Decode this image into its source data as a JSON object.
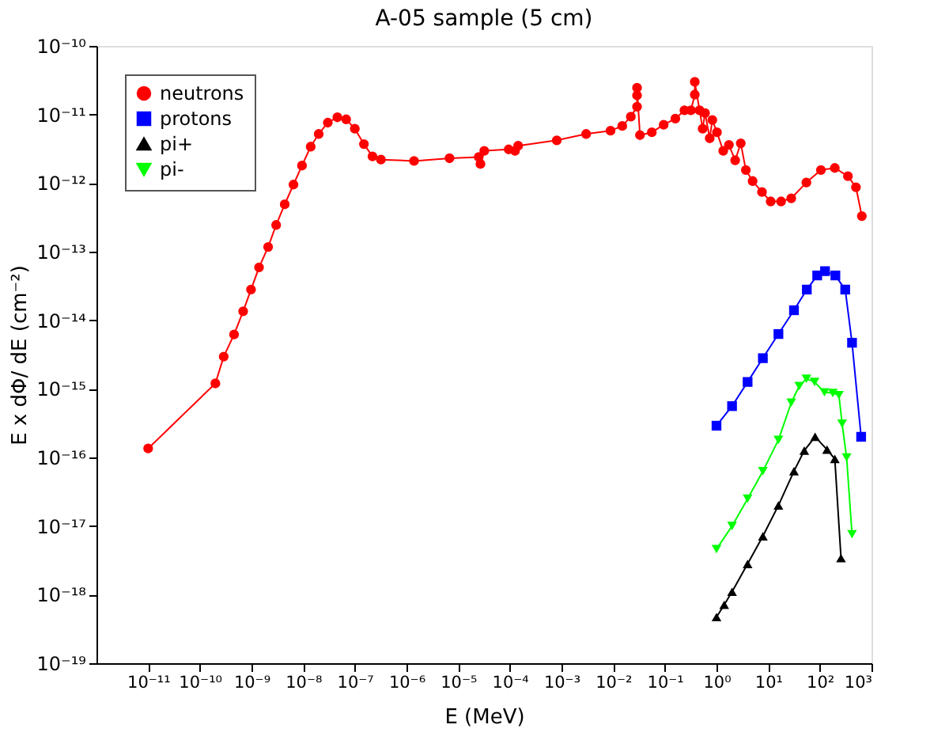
{
  "chart_data": {
    "type": "line",
    "title": "A-05 sample (5 cm)",
    "xlabel": "E (MeV)",
    "ylabel": "E x dΦ/ dE (cm⁻²)",
    "log": "xy",
    "grid": false,
    "legend": "top left",
    "xlim": [
      1e-12,
      1000.0
    ],
    "xticks": [
      {
        "value": 1e-11,
        "label": "10⁻¹¹"
      },
      {
        "value": 1e-10,
        "label": "10⁻¹⁰"
      },
      {
        "value": 1e-09,
        "label": "10⁻⁹"
      },
      {
        "value": 1e-08,
        "label": "10⁻⁸"
      },
      {
        "value": 1e-07,
        "label": "10⁻⁷"
      },
      {
        "value": 1e-06,
        "label": "10⁻⁶"
      },
      {
        "value": 1e-05,
        "label": "10⁻⁵"
      },
      {
        "value": 0.0001,
        "label": "10⁻⁴"
      },
      {
        "value": 0.001,
        "label": "10⁻³"
      },
      {
        "value": 0.01,
        "label": "10⁻²"
      },
      {
        "value": 0.1,
        "label": "10⁻¹"
      },
      {
        "value": 1,
        "label": "10⁰"
      },
      {
        "value": 10,
        "label": "10¹"
      },
      {
        "value": 100,
        "label": "10²"
      },
      {
        "value": 1000,
        "label": "10³"
      }
    ],
    "ylim": [
      1e-19,
      1e-10
    ],
    "yticks": [
      {
        "value": 1e-19,
        "label": "10⁻¹⁹"
      },
      {
        "value": 1e-18,
        "label": "10⁻¹⁸"
      },
      {
        "value": 1e-17,
        "label": "10⁻¹⁷"
      },
      {
        "value": 1e-16,
        "label": "10⁻¹⁶"
      },
      {
        "value": 1e-15,
        "label": "10⁻¹⁵"
      },
      {
        "value": 1e-14,
        "label": "10⁻¹⁴"
      },
      {
        "value": 1e-13,
        "label": "10⁻¹³"
      },
      {
        "value": 1e-12,
        "label": "10⁻¹²"
      },
      {
        "value": 1e-11,
        "label": "10⁻¹¹"
      },
      {
        "value": 1e-10,
        "label": "10⁻¹⁰"
      }
    ],
    "series": [
      {
        "name": "neutrons",
        "color": "#ff0000",
        "marker": "circle",
        "line_style": "solid",
        "x": [
          1e-11,
          2e-10,
          2.9e-10,
          4.6e-10,
          6.9e-10,
          9.8e-10,
          1.4e-09,
          2.1e-09,
          3e-09,
          4.4e-09,
          6.5e-09,
          9.5e-09,
          1.4e-08,
          2e-08,
          3e-08,
          4.6e-08,
          6.8e-08,
          1e-07,
          1.5e-07,
          2.2e-07,
          3.2e-07,
          1.4e-06,
          6.8e-06,
          2.5e-05,
          2.7e-05,
          3.2e-05,
          9.5e-05,
          0.000126,
          0.000145,
          0.00081,
          0.003,
          0.0089,
          0.015,
          0.022,
          0.029,
          0.029,
          0.029,
          0.033,
          0.056,
          0.095,
          0.16,
          0.24,
          0.32,
          0.38,
          0.38,
          0.47,
          0.54,
          0.6,
          0.74,
          0.83,
          1.02,
          1.35,
          1.74,
          2.3,
          2.95,
          3.7,
          5,
          7.6,
          11.2,
          17.8,
          28,
          55,
          105,
          195,
          350,
          500,
          650
        ],
        "values": [
          1.35e-16,
          1.2e-15,
          2.95e-15,
          6.2e-15,
          1.35e-14,
          2.8e-14,
          5.9e-14,
          1.17e-13,
          2.45e-13,
          4.9e-13,
          9.5e-13,
          1.8e-12,
          3.4e-12,
          5.2e-12,
          7.6e-12,
          9.1e-12,
          8.5e-12,
          6.2e-12,
          3.7e-12,
          2.45e-12,
          2.2e-12,
          2.1e-12,
          2.3e-12,
          2.4e-12,
          1.9e-12,
          2.95e-12,
          3.1e-12,
          2.95e-12,
          3.5e-12,
          4.2e-12,
          5.2e-12,
          5.8e-12,
          6.8e-12,
          9.3e-12,
          1.3e-11,
          1.9e-11,
          2.45e-11,
          5e-12,
          5.5e-12,
          7.1e-12,
          8.7e-12,
          1.15e-11,
          1.15e-11,
          1.95e-11,
          3e-11,
          1.15e-11,
          6.2e-12,
          1.05e-11,
          4.5e-12,
          8.3e-12,
          5.5e-12,
          2.95e-12,
          3.6e-12,
          2.15e-12,
          3.8e-12,
          1.55e-12,
          1.07e-12,
          7.4e-13,
          5.4e-13,
          5.4e-13,
          6e-13,
          1.02e-12,
          1.55e-12,
          1.66e-12,
          1.26e-12,
          8.7e-13,
          3.3e-13
        ]
      },
      {
        "name": "protons",
        "color": "#0000ff",
        "marker": "square",
        "line_style": "solid",
        "x": [
          1,
          2,
          4,
          7.9,
          15.8,
          31.6,
          56,
          89,
          126,
          200,
          310,
          420,
          630
        ],
        "values": [
          2.9e-16,
          5.6e-16,
          1.26e-15,
          2.8e-15,
          6.3e-15,
          1.4e-14,
          2.8e-14,
          4.5e-14,
          5.2e-14,
          4.5e-14,
          2.8e-14,
          4.7e-15,
          2e-16
        ]
      },
      {
        "name": "pi+",
        "color": "#000000",
        "marker": "triangle",
        "line_style": "solid",
        "x": [
          1,
          1.41,
          2,
          4,
          7.9,
          15.8,
          31.6,
          50,
          81,
          138,
          195,
          257
        ],
        "values": [
          4.7e-19,
          7.1e-19,
          1.1e-18,
          2.8e-18,
          7.1e-18,
          2e-17,
          6.3e-17,
          1.26e-16,
          2e-16,
          1.3e-16,
          9.5e-17,
          3.4e-18
        ]
      },
      {
        "name": "pi-",
        "color": "#00ff00",
        "marker": "triangle-down",
        "line_style": "solid",
        "x": [
          1,
          2,
          4,
          7.9,
          15.8,
          28,
          40,
          55,
          79,
          123,
          178,
          234,
          270,
          330,
          420
        ],
        "values": [
          4.6e-18,
          1e-17,
          2.5e-17,
          6.3e-17,
          1.8e-16,
          6.3e-16,
          1.1e-15,
          1.4e-15,
          1.26e-15,
          8.9e-16,
          8.7e-16,
          8.1e-16,
          3.1e-16,
          1e-16,
          7.6e-18
        ]
      }
    ]
  }
}
